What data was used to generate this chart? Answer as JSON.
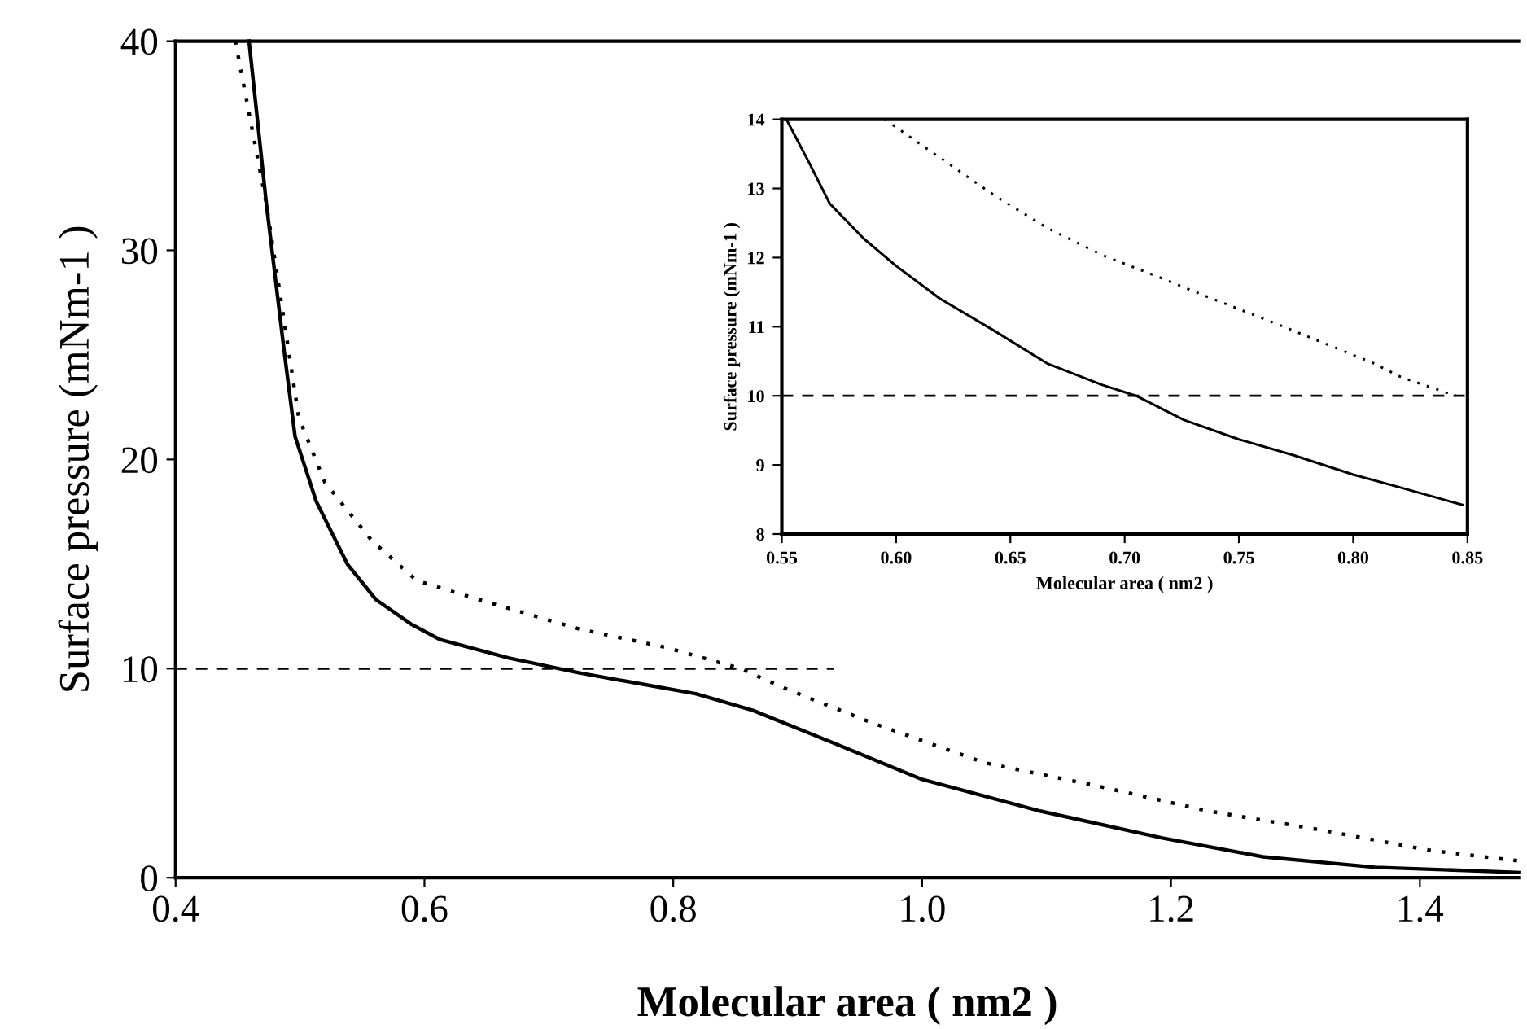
{
  "chart_data": [
    {
      "type": "line",
      "xlabel": "Molecular area ( nm2 )",
      "ylabel": "Surface pressure (mNm-1 )",
      "xlim": [
        0.4,
        1.48
      ],
      "ylim": [
        0,
        40
      ],
      "xticks": [
        0.4,
        0.6,
        0.8,
        {
          "value": 1.0,
          "label": "1.0"
        },
        1.2,
        1.4
      ],
      "yticks": [
        0,
        10,
        20,
        30,
        40
      ],
      "grid": false,
      "marker": "none",
      "series": [
        {
          "color": "#000000",
          "line_style": "solid",
          "x": [
            0.459,
            0.473,
            0.487,
            0.496,
            0.513,
            0.538,
            0.561,
            0.59,
            0.612,
            0.668,
            0.724,
            0.771,
            0.818,
            0.864,
            0.914,
            1.0,
            1.094,
            1.193,
            1.274,
            1.364,
            1.48
          ],
          "values": [
            40,
            32.2,
            25.3,
            21.1,
            18.0,
            15.0,
            13.3,
            12.1,
            11.4,
            10.5,
            9.8,
            9.3,
            8.8,
            8.0,
            6.8,
            4.7,
            3.2,
            1.9,
            1.0,
            0.5,
            0.25
          ]
        },
        {
          "color": "#000000",
          "line_style": "dotted",
          "x": [
            0.448,
            0.473,
            0.499,
            0.52,
            0.558,
            0.594,
            0.655,
            0.724,
            0.795,
            0.854,
            0.892,
            0.96,
            1.05,
            1.14,
            1.229,
            1.319,
            1.409,
            1.48
          ],
          "values": [
            40,
            32.2,
            22,
            18.9,
            16.1,
            14.2,
            13.1,
            11.9,
            11.0,
            10.0,
            9.0,
            7.4,
            5.5,
            4.4,
            3.2,
            2.3,
            1.3,
            0.8
          ]
        }
      ],
      "ref_lines": [
        {
          "axis": "y",
          "value": 10,
          "line_style": "dashed",
          "color": "#000000"
        }
      ]
    },
    {
      "type": "line",
      "xlabel": "Molecular area ( nm2 )",
      "ylabel": "Surface pressure (mNm-1 )",
      "xlim": [
        0.55,
        0.85
      ],
      "ylim": [
        8,
        14
      ],
      "xticks": [
        0.55,
        {
          "value": 0.6,
          "label": "0.60"
        },
        0.65,
        {
          "value": 0.7,
          "label": "0.70"
        },
        0.75,
        {
          "value": 0.8,
          "label": "0.80"
        },
        0.85
      ],
      "yticks": [
        8,
        9,
        10,
        11,
        12,
        13,
        14
      ],
      "grid": false,
      "marker": "none",
      "series": [
        {
          "color": "#000000",
          "line_style": "solid",
          "x": [
            0.552,
            0.562,
            0.571,
            0.586,
            0.6,
            0.619,
            0.643,
            0.666,
            0.69,
            0.705,
            0.726,
            0.75,
            0.774,
            0.8,
            0.821,
            0.848
          ],
          "values": [
            14.0,
            13.37,
            12.78,
            12.27,
            11.88,
            11.41,
            10.94,
            10.47,
            10.16,
            10.0,
            9.65,
            9.37,
            9.14,
            8.86,
            8.67,
            8.42
          ]
        },
        {
          "color": "#000000",
          "line_style": "dotted",
          "x": [
            0.595,
            0.619,
            0.643,
            0.666,
            0.69,
            0.714,
            0.738,
            0.762,
            0.786,
            0.809,
            0.821,
            0.845
          ],
          "values": [
            14,
            13.45,
            12.9,
            12.43,
            12.04,
            11.73,
            11.41,
            11.1,
            10.78,
            10.47,
            10.27,
            10.0
          ]
        }
      ],
      "ref_lines": [
        {
          "axis": "y",
          "value": 10,
          "line_style": "dashed",
          "color": "#000000"
        }
      ]
    }
  ]
}
